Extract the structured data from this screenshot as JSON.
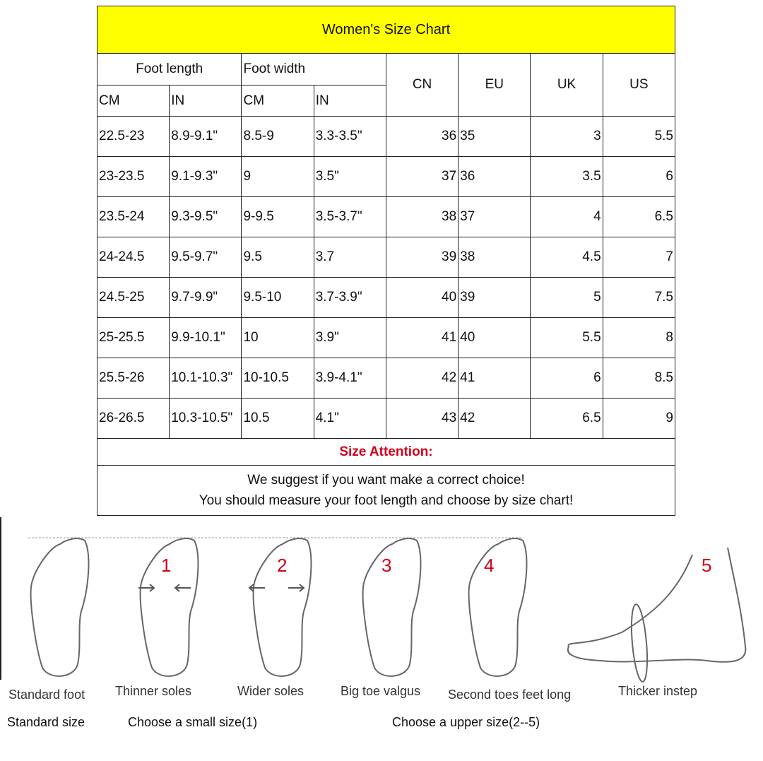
{
  "title": "Women's Size Chart",
  "headers": {
    "foot_length": "Foot length",
    "foot_width": "Foot width",
    "cm": "CM",
    "in": "IN",
    "cn": "CN",
    "eu": "EU",
    "uk": "UK",
    "us": "US"
  },
  "rows": [
    [
      "22.5-23",
      "8.9-9.1\"",
      "8.5-9",
      "3.3-3.5\"",
      "36",
      "35",
      "3",
      "5.5"
    ],
    [
      "23-23.5",
      "9.1-9.3\"",
      "9",
      "3.5\"",
      "37",
      "36",
      "3.5",
      "6"
    ],
    [
      "23.5-24",
      "9.3-9.5\"",
      "9-9.5",
      "3.5-3.7\"",
      "38",
      "37",
      "4",
      "6.5"
    ],
    [
      "24-24.5",
      "9.5-9.7\"",
      "9.5",
      "3.7",
      "39",
      "38",
      "4.5",
      "7"
    ],
    [
      "24.5-25",
      "9.7-9.9\"",
      "9.5-10",
      "3.7-3.9\"",
      "40",
      "39",
      "5",
      "7.5"
    ],
    [
      "25-25.5",
      "9.9-10.1\"",
      "10",
      "3.9\"",
      "41",
      "40",
      "5.5",
      "8"
    ],
    [
      "25.5-26",
      "10.1-10.3\"",
      "10-10.5",
      "3.9-4.1\"",
      "42",
      "41",
      "6",
      "8.5"
    ],
    [
      "26-26.5",
      "10.3-10.5\"",
      "10.5",
      "4.1\"",
      "43",
      "42",
      "6.5",
      "9"
    ]
  ],
  "attention": "Size Attention:",
  "suggestion": [
    "We suggest if you want make a correct choice!",
    "You should measure your foot length and choose by size chart!"
  ],
  "feet": [
    {
      "num": "",
      "label": "Standard foot"
    },
    {
      "num": "1",
      "label": "Thinner soles"
    },
    {
      "num": "2",
      "label": "Wider soles"
    },
    {
      "num": "3",
      "label": "Big toe valgus"
    },
    {
      "num": "4",
      "label": "Second toes feet long"
    },
    {
      "num": "5",
      "label": "Thicker instep"
    }
  ],
  "notes": [
    "Standard size",
    "Choose a small size(1)",
    "Choose a upper size(2--5)"
  ],
  "colors": {
    "header_bg": "#ffff00",
    "attention": "#d0021b"
  }
}
